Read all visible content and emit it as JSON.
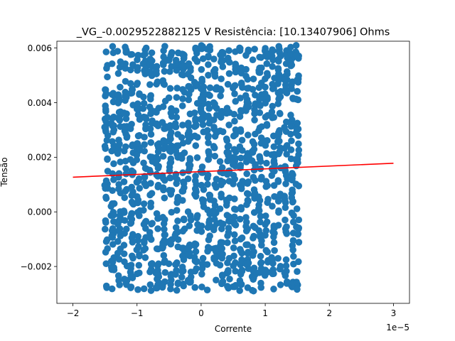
{
  "chart_data": {
    "type": "scatter",
    "title": "_VG_-0.0029522882125 V  Resistência: [10.13407906] Ohms",
    "xlabel": "Corrente",
    "ylabel": "Tensão",
    "x_offset_label": "1e−5",
    "xlim": [
      -2.25e-05,
      3.25e-05
    ],
    "ylim": [
      -0.00335,
      0.00625
    ],
    "x_ticks": [
      -2e-05,
      -1e-05,
      0,
      1e-05,
      2e-05,
      3e-05
    ],
    "x_tick_labels": [
      "−2",
      "−1",
      "0",
      "1",
      "2",
      "3"
    ],
    "y_ticks": [
      -0.002,
      0.0,
      0.002,
      0.004,
      0.006
    ],
    "y_tick_labels": [
      "−0.002",
      "0.000",
      "0.002",
      "0.004",
      "0.006"
    ],
    "grid": false,
    "scatter": {
      "color": "#1f77b4",
      "x_columns": [
        -1.48e-05,
        -1.38e-05,
        -1.28e-05,
        -1.18e-05,
        -1.08e-05,
        -9.8e-06,
        -8.8e-06,
        -7.8e-06,
        -6.8e-06,
        -5.8e-06,
        -4.8e-06,
        -3.8e-06,
        -2.8e-06,
        -1.8e-06,
        -8e-07,
        2e-07,
        1.2e-06,
        2.2e-06,
        3.2e-06,
        4.2e-06,
        5.2e-06,
        6.2e-06,
        7.2e-06,
        8.2e-06,
        9.2e-06,
        1.02e-05,
        1.12e-05,
        1.22e-05,
        1.32e-05,
        1.42e-05,
        1.5e-05
      ],
      "y_range": [
        -0.0029,
        0.0061
      ],
      "description_points_per_column": 45
    },
    "fit_line": {
      "color": "#ff0000",
      "x": [
        -2e-05,
        3e-05
      ],
      "y": [
        0.00127,
        0.00178
      ]
    }
  }
}
